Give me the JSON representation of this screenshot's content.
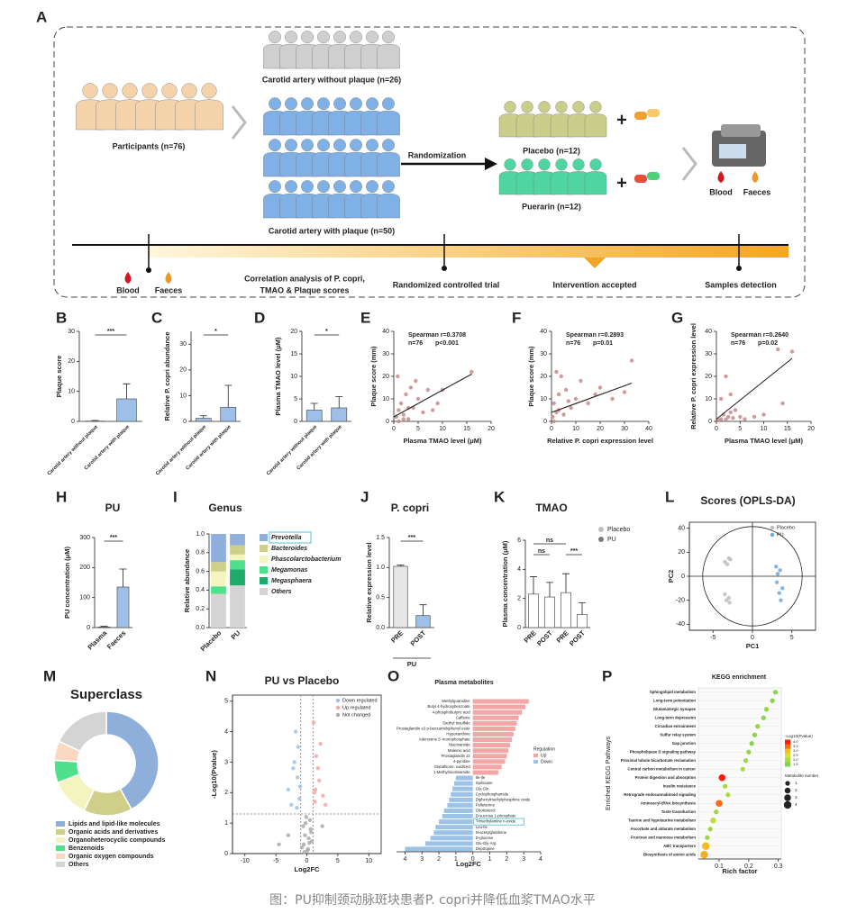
{
  "panel_a": {
    "label": "A",
    "participants": "Participants (n=76)",
    "without_plaque": "Carotid artery without plaque (n=26)",
    "with_plaque": "Carotid artery with plaque (n=50)",
    "randomization": "Randomization",
    "placebo": "Placebo (n=12)",
    "puerarin": "Puerarin (n=12)",
    "plus": "+",
    "blood": "Blood",
    "faeces": "Faeces",
    "timeline": [
      "Correlation analysis of P. copri,",
      "TMAO & Plaque scores",
      "Randomized controlled trial",
      "Intervention accepted",
      "Samples detection"
    ]
  },
  "chart_data": [
    {
      "panel": "B",
      "type": "bar",
      "ylabel": "Plaque score",
      "categories": [
        "Carotid artery without plaque",
        "Carotid artery with plaque"
      ],
      "values": [
        0.1,
        7.5
      ],
      "errors": [
        0.2,
        5
      ],
      "colors": [
        "#9dbfe8",
        "#9dbfe8"
      ],
      "ylim": [
        0,
        30
      ],
      "yticks": [
        0,
        10,
        20,
        30
      ],
      "annotations": [
        "***"
      ]
    },
    {
      "panel": "C",
      "type": "bar",
      "ylabel": "Relative P. copri abundance",
      "categories": [
        "Carotid artery without plaque",
        "Carotid artery with plaque"
      ],
      "values": [
        1.2,
        5.5
      ],
      "errors": [
        1,
        8.5
      ],
      "colors": [
        "#9dbfe8",
        "#9dbfe8"
      ],
      "ylim": [
        0,
        35
      ],
      "yticks": [
        0,
        10,
        20,
        30
      ],
      "annotations": [
        "*"
      ]
    },
    {
      "panel": "D",
      "type": "bar",
      "ylabel": "Plasma TMAO level (μM)",
      "categories": [
        "Carotid artery without plaque",
        "Carotid artery with plaque"
      ],
      "values": [
        2.5,
        3
      ],
      "errors": [
        1.5,
        2.5
      ],
      "colors": [
        "#9dbfe8",
        "#9dbfe8"
      ],
      "ylim": [
        0,
        20
      ],
      "yticks": [
        0,
        5,
        10,
        15,
        20
      ],
      "annotations": [
        "*"
      ]
    },
    {
      "panel": "E",
      "type": "scatter",
      "ylabel": "Plaque score (mm)",
      "xlabel": "Plasma TMAO level (μM)",
      "annotations": [
        "Spearman r=0.3708",
        "n=76",
        "p<0.001"
      ],
      "series": [
        {
          "color": "#c98a8a",
          "x": [
            0.5,
            1,
            1.5,
            2,
            2.5,
            3,
            3.5,
            4,
            5,
            6,
            7,
            8,
            9,
            10,
            16,
            1,
            2,
            0.8,
            3,
            4.5
          ],
          "y": [
            2,
            5,
            8,
            3,
            12,
            1,
            15,
            6,
            10,
            4,
            14,
            5,
            8,
            14,
            22,
            0,
            1,
            20,
            6,
            18
          ]
        }
      ],
      "fit": {
        "x": [
          0,
          16
        ],
        "y": [
          2,
          21
        ]
      },
      "xlim": [
        0,
        20
      ],
      "xticks": [
        0,
        5,
        10,
        15,
        20
      ],
      "ylim": [
        0,
        40
      ],
      "yticks": [
        0,
        10,
        20,
        30,
        40
      ]
    },
    {
      "panel": "F",
      "type": "scatter",
      "ylabel": "Plaque score (mm)",
      "xlabel": "Relative P. copri expression level",
      "annotations": [
        "Spearman r=0.2893",
        "n=76",
        "p=0.01"
      ],
      "series": [
        {
          "color": "#c98a8a",
          "x": [
            0.5,
            1,
            2,
            3,
            4,
            5,
            6,
            8,
            10,
            12,
            15,
            18,
            20,
            25,
            30,
            33,
            1,
            2,
            3,
            7
          ],
          "y": [
            2,
            8,
            4,
            12,
            20,
            3,
            14,
            6,
            10,
            18,
            8,
            12,
            15,
            10,
            13,
            27,
            0,
            22,
            5,
            9
          ]
        }
      ],
      "fit": {
        "x": [
          0,
          33
        ],
        "y": [
          4,
          17
        ]
      },
      "xlim": [
        0,
        40
      ],
      "xticks": [
        0,
        10,
        20,
        30,
        40
      ],
      "ylim": [
        0,
        40
      ],
      "yticks": [
        0,
        10,
        20,
        30,
        40
      ]
    },
    {
      "panel": "G",
      "type": "scatter",
      "ylabel": "Relative P. copri expression level",
      "xlabel": "Plasma TMAO level (μM)",
      "annotations": [
        "Spearman r=0.2640",
        "n=76",
        "p=0.02"
      ],
      "series": [
        {
          "color": "#c98a8a",
          "x": [
            0.5,
            1,
            1.5,
            2,
            2.5,
            3,
            3.5,
            4,
            5,
            6,
            8,
            10,
            13,
            14,
            16,
            1,
            2,
            3
          ],
          "y": [
            0.5,
            1,
            3,
            0.8,
            2,
            4,
            1.5,
            5,
            2,
            1,
            2,
            3,
            32,
            8,
            31,
            10,
            20,
            12
          ]
        }
      ],
      "fit": {
        "x": [
          0,
          16
        ],
        "y": [
          1,
          28
        ]
      },
      "xlim": [
        0,
        20
      ],
      "xticks": [
        0,
        5,
        10,
        15,
        20
      ],
      "ylim": [
        0,
        40
      ],
      "yticks": [
        0,
        10,
        20,
        30,
        40
      ]
    },
    {
      "panel": "H",
      "type": "bar",
      "title": "PU",
      "ylabel": "PU concentration (μM)",
      "categories": [
        "Plasma",
        "Faeces"
      ],
      "values": [
        2,
        135
      ],
      "errors": [
        2,
        60
      ],
      "colors": [
        "#9dbfe8",
        "#9dbfe8"
      ],
      "ylim": [
        0,
        300
      ],
      "yticks": [
        0,
        100,
        200,
        300
      ],
      "annotations": [
        "***"
      ]
    },
    {
      "panel": "I",
      "type": "stacked_bar",
      "title": "Genus",
      "ylabel": "Relative abundance",
      "categories": [
        "Placebo",
        "PU"
      ],
      "series": [
        {
          "name": "Others",
          "color": "#d4d4d4",
          "values": [
            0.36,
            0.45
          ]
        },
        {
          "name": "Megasphaera",
          "color": "#1faa6b",
          "values": [
            0,
            0.17
          ]
        },
        {
          "name": "Megamonas",
          "color": "#4fe08c",
          "values": [
            0.08,
            0.1
          ]
        },
        {
          "name": "Phascolarctobacterium",
          "color": "#f4f4bf",
          "values": [
            0.16,
            0.06
          ]
        },
        {
          "name": "Bacteroides",
          "color": "#cfcf8a",
          "values": [
            0.1,
            0.1
          ]
        },
        {
          "name": "Prevotella",
          "color": "#8fb0dc",
          "values": [
            0.3,
            0.12
          ]
        }
      ],
      "ylim": [
        0,
        1
      ],
      "yticks": [
        {
          "value": 0,
          "label": "0.0"
        },
        0.2,
        0.4,
        0.6,
        0.8,
        {
          "value": 1,
          "label": "1.0"
        }
      ]
    },
    {
      "panel": "J",
      "type": "bar",
      "title": "P. copri",
      "ylabel": "Relative expression level",
      "categories": [
        "PRE",
        "POST"
      ],
      "group_label": "PU",
      "values": [
        1.02,
        0.2
      ],
      "errors": [
        0.02,
        0.18
      ],
      "colors": [
        "#e6e6e6",
        "#9dbfe8"
      ],
      "ylim": [
        0,
        1.5
      ],
      "yticks": [
        {
          "value": 0,
          "label": "0.0"
        },
        0.5,
        {
          "value": 1,
          "label": "1.0"
        },
        1.5
      ],
      "annotations": [
        "***"
      ]
    },
    {
      "panel": "K",
      "type": "bar",
      "title": "TMAO",
      "ylabel": "Plasma concentration (μM)",
      "categories": [
        "PRE",
        "POST",
        "PRE",
        "POST"
      ],
      "values": [
        2.3,
        2.1,
        2.4,
        0.9
      ],
      "errors": [
        1.2,
        1,
        1.3,
        0.8
      ],
      "colors": [
        "#ffffff",
        "#ffffff",
        "#ffffff",
        "#ffffff"
      ],
      "legend": [
        {
          "name": "Placebo",
          "color": "#bdbdbd"
        },
        {
          "name": "PU",
          "color": "#7a7a7a"
        }
      ],
      "ylim": [
        0,
        6
      ],
      "yticks": [
        0,
        2,
        4,
        6
      ],
      "annotations": [
        "ns",
        "ns",
        "***"
      ]
    },
    {
      "panel": "L",
      "type": "scatter",
      "title": "Scores (OPLS-DA)",
      "xlabel": "PC1",
      "ylabel": "PC2",
      "series": [
        {
          "name": "Placebo",
          "color": "#bdbdbd",
          "x": [
            -3,
            -3.5,
            -2.8,
            -3.2,
            -3,
            -3.3,
            -2.9,
            -3.5
          ],
          "y": [
            15,
            12,
            14,
            10,
            -18,
            -20,
            -22,
            -15
          ]
        },
        {
          "name": "PU",
          "color": "#6fa8dc",
          "x": [
            3,
            3.5,
            3.2,
            3.8,
            3.4,
            3.6,
            3.1
          ],
          "y": [
            8,
            5,
            2,
            -10,
            -14,
            -20,
            -5
          ]
        }
      ],
      "xlim": [
        -8,
        8
      ],
      "xticks": [
        -5,
        0,
        5
      ],
      "ylim": [
        -45,
        45
      ],
      "yticks": [
        -40,
        -20,
        0,
        20,
        40
      ]
    },
    {
      "panel": "M",
      "type": "donut",
      "title": "Superclass",
      "series": [
        {
          "name": "Lipids and lipid-like molecules",
          "color": "#8eafd9",
          "value": 42
        },
        {
          "name": "Organic acids and derivatives",
          "color": "#cfcf8a",
          "value": 15
        },
        {
          "name": "Organoheterocyclic compounds",
          "color": "#f4f4bf",
          "value": 12
        },
        {
          "name": "Benzenoids",
          "color": "#4fe08c",
          "value": 7
        },
        {
          "name": "Organic oxygen compounds",
          "color": "#fbd8bf",
          "value": 6
        },
        {
          "name": "Others",
          "color": "#d4d4d4",
          "value": 18
        }
      ]
    },
    {
      "panel": "N",
      "type": "scatter",
      "title": "PU vs Placebo",
      "xlabel": "Log2FC",
      "ylabel": "-Log10(Pvalue)",
      "series": [
        {
          "name": "Down regulated",
          "color": "#9cc3e6",
          "x": [
            -1.5,
            -2,
            -1.2,
            -3,
            -1.8,
            -2.5,
            -1.1,
            -1.4,
            -2.2,
            -1.6
          ],
          "y": [
            2.5,
            3,
            1.8,
            2.1,
            4,
            1.6,
            2.2,
            3.5,
            2.8,
            1.5
          ]
        },
        {
          "name": "Up regulated",
          "color": "#f4a6a6",
          "x": [
            1.2,
            1.5,
            2,
            1.3,
            2.6,
            1.8,
            1.1,
            3,
            1.4,
            2.2
          ],
          "y": [
            2,
            3.2,
            2.4,
            1.7,
            1.9,
            2.8,
            4.3,
            1.6,
            2.1,
            3.6
          ]
        },
        {
          "name": "Not changed",
          "color": "#aaaaaa",
          "x": [
            -0.5,
            0.3,
            -0.2,
            0.6,
            -0.8,
            0.1,
            -0.3,
            0.5,
            0.8,
            -0.6,
            0.2,
            -0.1,
            -3,
            2.5,
            -4.5,
            0.4,
            -0.4,
            0.7
          ],
          "y": [
            0.3,
            0.5,
            1.0,
            0.8,
            0.2,
            0.1,
            0.6,
            1.1,
            0.4,
            0.9,
            0.15,
            1.2,
            0.6,
            0.9,
            0.3,
            0.35,
            0.05,
            0.7
          ]
        }
      ],
      "x_cutoffs": [
        -1,
        1
      ],
      "y_cutoff": 1.3,
      "xlim": [
        -12,
        12
      ],
      "xticks": [
        -10,
        -5,
        0,
        5,
        10
      ],
      "ylim": [
        0,
        5.2
      ],
      "yticks": [
        0,
        1,
        2,
        3,
        4,
        5
      ]
    },
    {
      "panel": "O",
      "type": "hbar",
      "title": "Plasma metabolites",
      "xlabel": "Log2FC",
      "legend_title": "Regulation",
      "legend": [
        {
          "name": "Up",
          "color": "#f4a6a6"
        },
        {
          "name": "Down",
          "color": "#9cc3e6"
        }
      ],
      "categories": [
        "Methylguanidine",
        "Butyl 4-hydroxybenzoate",
        "4-phosphobutyric acid",
        "Caffeine",
        "Diethyl trisulfide",
        "Prostaglandin e2 p-benzamidophenyl ester",
        "Hypoxanthine",
        "Adenosine 5'-monophosphate",
        "Niacinamide",
        "Maleinic acid",
        "Prostaglandin J2",
        "4-pyridine",
        "Glutathione, oxidized",
        "1-Methylnicotinamide",
        "Ile-Ile",
        "Spiloxane",
        "Gly-Gln",
        "Cyclophosphamide",
        "Diphenylmethylphosphine oxide",
        "Pelletierine",
        "Cholesterol",
        "D-sucrose 1-phosphate",
        "Trimethylamine n-oxide",
        "Leu-Ile",
        "N-acetylglutamine",
        "D-glucose",
        "Glu-Gly-Arg",
        "Deptropine"
      ],
      "values": [
        3.3,
        3.1,
        2.9,
        2.7,
        2.6,
        2.5,
        2.4,
        2.3,
        2.2,
        2.1,
        2.0,
        1.9,
        1.7,
        1.5,
        -1.0,
        -1.1,
        -1.2,
        -1.3,
        -1.4,
        -1.5,
        -1.7,
        -1.8,
        -2.0,
        -2.2,
        -2.3,
        -2.5,
        -2.8,
        -4.0
      ],
      "xlim": [
        -4.5,
        4
      ],
      "xticks": [
        {
          "value": -4,
          "label": "4"
        },
        {
          "value": -3,
          "label": "3"
        },
        {
          "value": -2,
          "label": "2"
        },
        {
          "value": -1,
          "label": "1"
        },
        0,
        1,
        2,
        3,
        4
      ]
    },
    {
      "panel": "P",
      "type": "dot",
      "title": "KEGG enrichment",
      "xlabel": "Rich factor",
      "ylabel": "Enriched KEGG Pathways",
      "categories": [
        "Sphingolipid metabolism",
        "Long-term potentiation",
        "Glutamatergic synapse",
        "Long-term depression",
        "Circadian entrainment",
        "Sulfur relay system",
        "Gap junction",
        "Phospholipase D signaling pathway",
        "Proximal tubule bicarbonate reclamation",
        "Central carbon metabolism in cancer",
        "Protein digestion and absorption",
        "Insulin resistance",
        "Retrograde endocannabinoid signaling",
        "Aminoacyl-tRNA biosynthesis",
        "Taste transduction",
        "Taurine and hypotaurine metabolism",
        "Ascorbate and aldarate metabolism",
        "Fructose and mannose metabolism",
        "ABC transporters",
        "Biosynthesis of amino acids"
      ],
      "values": [
        0.29,
        0.28,
        0.26,
        0.25,
        0.23,
        0.22,
        0.21,
        0.2,
        0.19,
        0.18,
        0.11,
        0.12,
        0.13,
        0.1,
        0.09,
        0.08,
        0.07,
        0.06,
        0.055,
        0.05
      ],
      "sizes": [
        1,
        1,
        1,
        1,
        1,
        1,
        1,
        1,
        1,
        1,
        3,
        1,
        1,
        3,
        1,
        2,
        1,
        1,
        4,
        4
      ],
      "logp": [
        1.6,
        1.6,
        1.7,
        1.6,
        1.7,
        1.6,
        1.6,
        1.7,
        1.8,
        2.0,
        4.0,
        1.9,
        2.0,
        3.5,
        1.8,
        2.2,
        1.8,
        1.8,
        3.0,
        3.1
      ],
      "color_title": "-Log10(Pvalue)",
      "color_ticks": [
        {
          "value": 4,
          "label": "4.0"
        },
        3.5,
        {
          "value": 3,
          "label": "3.0"
        },
        2.5,
        {
          "value": 2,
          "label": "2.0"
        },
        1.5
      ],
      "colormap": [
        "#7fd34e",
        "#f2e52b",
        "#ff1a00"
      ],
      "size_title": "Metabolite number",
      "size_ticks": [
        1,
        2,
        3,
        4
      ],
      "xlim": [
        0.03,
        0.31
      ],
      "xticks": [
        0.1,
        0.2,
        0.3
      ]
    }
  ],
  "caption": "图：PU抑制颈动脉斑块患者P. copri并降低血浆TMAO水平"
}
